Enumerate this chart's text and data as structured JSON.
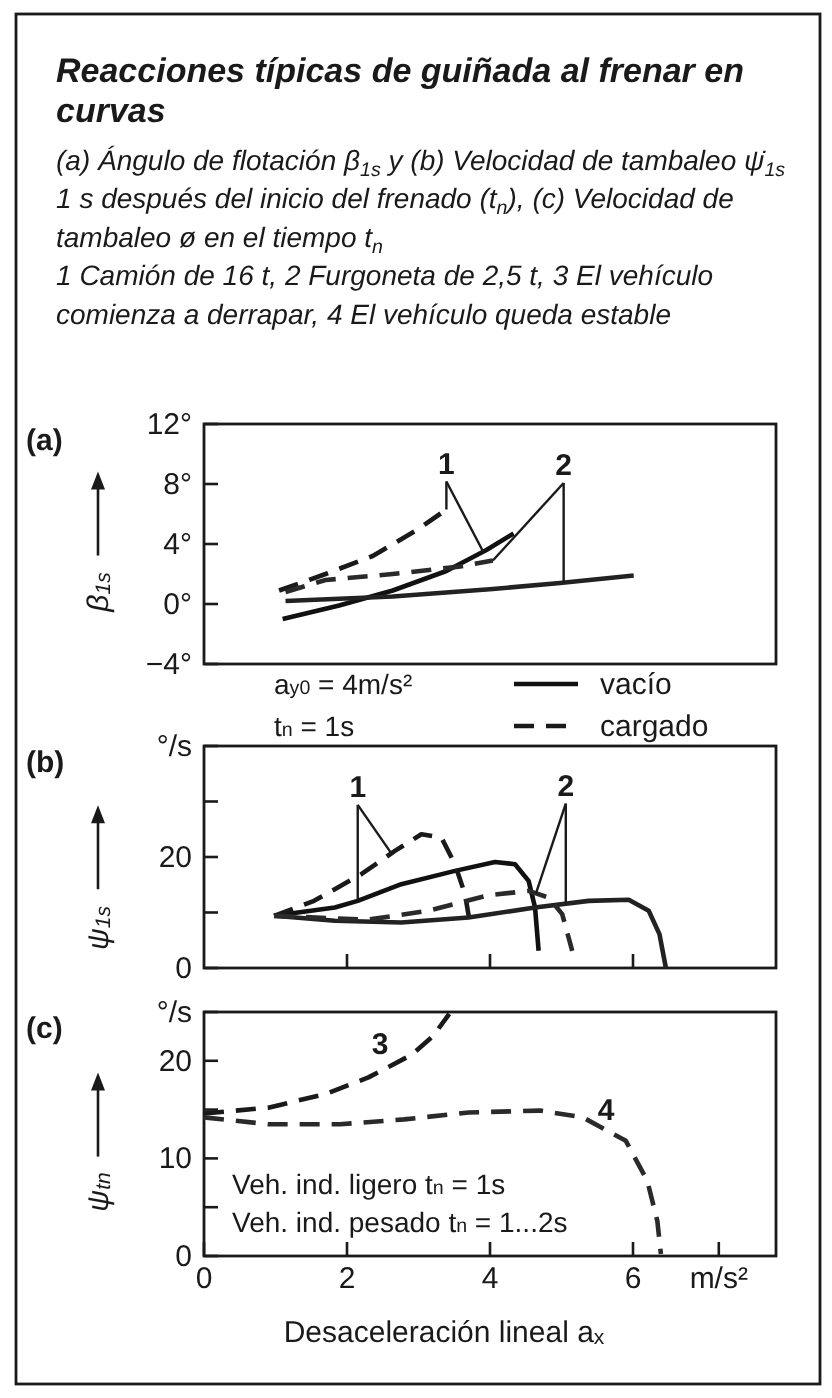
{
  "chart_data": [
    {
      "type": "line",
      "title": "Reacciones típicas de guiñada al frenar en curvas",
      "subtitle": "(a) Ángulo de flotación β$_{1s}$ y (b) Velocidad de tambaleo ψ̇$_{1s}$ 1 s después del inicio del frenado (t$_{n}$), (c) Velocidad de tambaleo ø en el tiempo t$_{n}$\n1 Camión de 16 t, 2 Furgoneta de 2,5 t, 3 El vehículo comienza a derrapar, 4 El vehículo queda estable",
      "ylabel": "β$_{1s}$",
      "xlim": [
        0,
        8
      ],
      "ylim": [
        -4,
        12
      ],
      "yticks": [
        {
          "value": -4,
          "label": "−4°"
        },
        {
          "value": 0,
          "label": "0°"
        },
        {
          "value": 4,
          "label": "4°"
        },
        {
          "value": 8,
          "label": "8°"
        },
        {
          "value": 12,
          "label": "12°"
        }
      ],
      "tick_labels": "y",
      "legend": "bottom right",
      "series": [
        {
          "name": "vacío",
          "color": "#111111",
          "line_style": "solid",
          "x": [
            1.1,
            1.89,
            2.64,
            3.39,
            3.95,
            4.33
          ],
          "values": [
            -1.0,
            -0.1,
            0.9,
            2.2,
            3.6,
            4.7
          ]
        },
        {
          "name": "cargado",
          "color": "#1a1a1a",
          "line_style": "dashed",
          "x": [
            1.05,
            1.7,
            2.36,
            3.0,
            3.39
          ],
          "values": [
            0.9,
            2.0,
            3.2,
            5.0,
            6.3
          ]
        },
        {
          "color": "#222222",
          "line_style": "solid",
          "x": [
            1.14,
            2.64,
            4.04,
            4.98,
            6.01
          ],
          "values": [
            0.2,
            0.5,
            1.0,
            1.4,
            1.9
          ]
        },
        {
          "color": "#2a2a2a",
          "line_style": "dashed",
          "x": [
            1.14,
            1.7,
            2.64,
            3.58,
            4.04
          ],
          "values": [
            0.8,
            1.6,
            2.0,
            2.5,
            2.9
          ]
        }
      ],
      "annotations": [
        "(a)",
        "a$_{y0}$ = 4m/s²",
        "t$_{n}$ = 1s",
        {
          "text": "1",
          "x": 3.39,
          "y": 6.3
        },
        {
          "text": "2",
          "x": 5.03,
          "y": 1.4
        }
      ]
    },
    {
      "type": "line",
      "ylabel": "ψ$_{1s}$",
      "xlim": [
        0,
        8
      ],
      "xticks": [
        2,
        4,
        6
      ],
      "ylim": [
        0,
        40
      ],
      "yticks": [
        0,
        {
          "value": 10,
          "label": null
        },
        20,
        {
          "value": 30,
          "label": null
        },
        {
          "value": 40,
          "label": "°/s"
        }
      ],
      "tick_labels": "y",
      "series": [
        {
          "color": "#111111",
          "line_style": "solid",
          "x": [
            0.98,
            1.83,
            2.15,
            2.76,
            3.51,
            4.07,
            4.35,
            4.54,
            4.63,
            4.68
          ],
          "values": [
            9.4,
            10.9,
            12.1,
            15.1,
            17.5,
            19.1,
            18.7,
            15.7,
            10.9,
            3.1
          ]
        },
        {
          "color": "#1a1a1a",
          "line_style": "dashed",
          "x": [
            0.98,
            1.54,
            2.2,
            2.67,
            3.04,
            3.32,
            3.51,
            3.65,
            3.72
          ],
          "values": [
            9.4,
            12.1,
            16.9,
            21.1,
            24.1,
            23.5,
            18.7,
            13.3,
            8
          ]
        },
        {
          "color": "#222222",
          "line_style": "solid",
          "x": [
            0.98,
            1.83,
            2.76,
            3.7,
            4.63,
            5.38,
            5.94,
            6.22,
            6.37,
            6.46
          ],
          "values": [
            9.4,
            8.5,
            8.2,
            9.1,
            10.9,
            12.1,
            12.3,
            10.3,
            6.1,
            0
          ]
        },
        {
          "color": "#2a2a2a",
          "line_style": "dashed",
          "x": [
            0.98,
            2.29,
            3.13,
            3.98,
            4.54,
            4.82,
            5.01,
            5.15
          ],
          "values": [
            9.4,
            8.7,
            10.3,
            13.1,
            13.9,
            12.7,
            9.7,
            3.1
          ]
        }
      ],
      "annotations": [
        "(b)",
        {
          "text": "1",
          "x": 2.15,
          "y": 12.1
        },
        {
          "text": "2",
          "x": 5.06,
          "y": 11.6
        }
      ]
    },
    {
      "type": "line",
      "ylabel": "ψ$_{tn}$",
      "xlabel": "Desaceleración lineal a$_{x}$",
      "xlim": [
        0,
        8
      ],
      "xticks": [
        0,
        2,
        4,
        6,
        {
          "value": 7.2,
          "label": "m/s²"
        }
      ],
      "ylim": [
        0,
        25
      ],
      "yticks": [
        0,
        {
          "value": 5,
          "label": null
        },
        10,
        {
          "value": 15,
          "label": null
        },
        20,
        {
          "value": 25,
          "label": "°/s"
        }
      ],
      "series": [
        {
          "color": "#1a1a1a",
          "line_style": "dashed",
          "x": [
            0,
            0.9,
            1.7,
            2.3,
            2.9,
            3.2,
            3.43
          ],
          "values": [
            14.6,
            15.2,
            16.6,
            18.3,
            20.6,
            22.5,
            24.8
          ]
        },
        {
          "color": "#2a2a2a",
          "line_style": "dashed",
          "x": [
            0,
            0.9,
            1.9,
            2.8,
            3.7,
            4.7,
            5.3,
            5.9,
            6.2,
            6.34,
            6.39
          ],
          "values": [
            14.2,
            13.5,
            13.5,
            14.0,
            14.7,
            14.9,
            14.2,
            11.8,
            7.7,
            3.6,
            0.2
          ]
        }
      ],
      "annotations": [
        "(c)",
        "Veh. ind. ligero t$_{n}$ = 1s",
        "Veh. ind. pesado t$_{n}$ = 1...2s",
        "3",
        "4"
      ]
    }
  ]
}
